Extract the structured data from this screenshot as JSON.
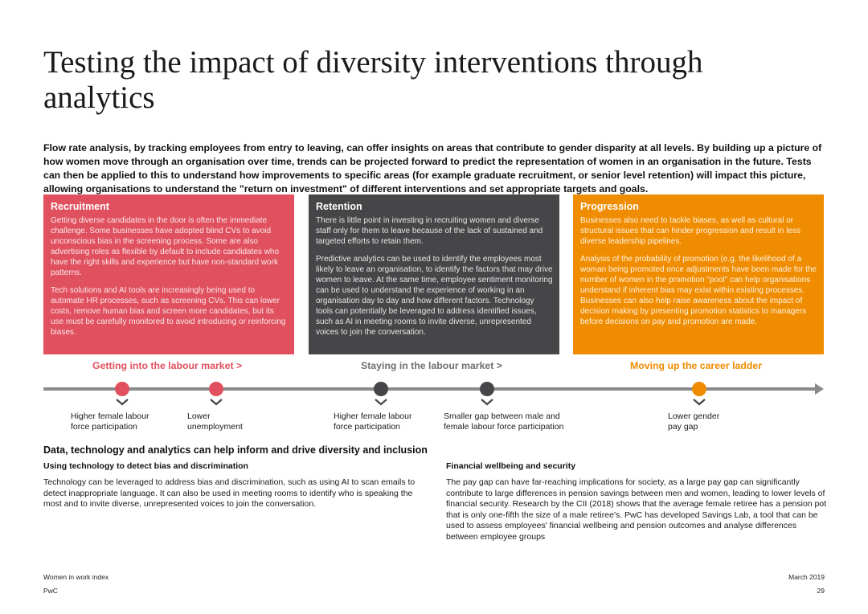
{
  "title": "Testing the impact of diversity interventions through analytics",
  "intro": "Flow rate analysis, by tracking employees from entry to leaving, can offer insights on areas that contribute to gender disparity at all levels. By building up a picture of how women move through an organisation over time, trends can be projected forward to predict the representation of women in an organisation in the future. Tests can then be applied to this to understand how improvements to specific areas (for example graduate recruitment, or senior level retention) will impact this picture, allowing organisations to understand the \"return on investment\" of different interventions and set appropriate targets and goals.",
  "boxes": [
    {
      "heading": "Recruitment",
      "paragraphs": [
        "Getting diverse candidates in the door is often the immediate challenge. Some businesses have adopted blind CVs to avoid unconscious bias in the screening process. Some are also advertising roles as flexible by default to include candidates who have the right skills and experience but have non-standard work patterns.",
        "Tech solutions and AI tools are increasingly being used to automate HR processes, such as screening CVs. This can lower costs, remove human bias and screen more candidates, but its use must be carefully monitored to avoid introducing or reinforcing biases."
      ]
    },
    {
      "heading": "Retention",
      "paragraphs": [
        "There is little point in investing in recruiting women and diverse staff only for them to leave because of the lack of sustained and targeted efforts to retain them.",
        "Predictive analytics can be used to identify the employees most likely to leave an organisation, to identify the factors that may drive women to leave. At the same time, employee sentiment monitoring can be used to understand the experience of working in an organisation day to day and how different factors. Technology tools can potentially be leveraged to address identified issues, such as AI in meeting rooms to invite diverse, unrepresented voices to join the conversation."
      ]
    },
    {
      "heading": "Progression",
      "paragraphs": [
        "Businesses also need to tackle biases, as well as cultural or structural issues that can hinder progression and result in less diverse leadership pipelines.",
        "Analysis of the probability of promotion (e.g. the likelihood of a woman being promoted once adjustments have been made for the number of women in the promotion \"pool\" can help organisations understand if inherent bias may exist within existing processes. Businesses can also help raise awareness about the impact of decision making by presenting promotion statistics to managers before decisions on pay and promotion are made."
      ]
    }
  ],
  "stages": [
    "Getting into the labour market >",
    "Staying in the labour market >",
    "Moving up the career ladder"
  ],
  "milestones": [
    "Higher female labour\nforce participation",
    "Lower\nunemployment",
    "Higher female labour\nforce participation",
    "Smaller gap between male and\nfemale labour force participation",
    "Lower gender\npay gap"
  ],
  "section_heading": "Data, technology and analytics can help inform and drive diversity and inclusion",
  "columns": [
    {
      "heading": "Using technology to detect bias and discrimination",
      "text": "Technology can be leveraged to address bias and discrimination, such as using AI to scan emails to detect inappropriate language. It can also be used in meeting rooms to identify who is speaking the most and to invite diverse, unrepresented voices to join the conversation."
    },
    {
      "heading": "Financial wellbeing and security",
      "text": "The pay gap can have far-reaching implications for society, as a large pay gap can significantly contribute to large differences in pension savings between men and women, leading to lower levels of financial security. Research by the CII (2018) shows that the average female retiree has a pension pot that is only one-fifth the size of a male retiree's. PwC has developed Savings Lab, a tool that can be used to assess employees' financial wellbeing and pension outcomes and analyse differences between employee groups"
    }
  ],
  "footer": {
    "publication": "Women in work index",
    "brand": "PwC",
    "date": "March 2019",
    "page": "29"
  },
  "colors": {
    "red": "#e0505f",
    "dark": "#464548",
    "orange": "#f08c00",
    "timeline": "#8a8a8a"
  }
}
